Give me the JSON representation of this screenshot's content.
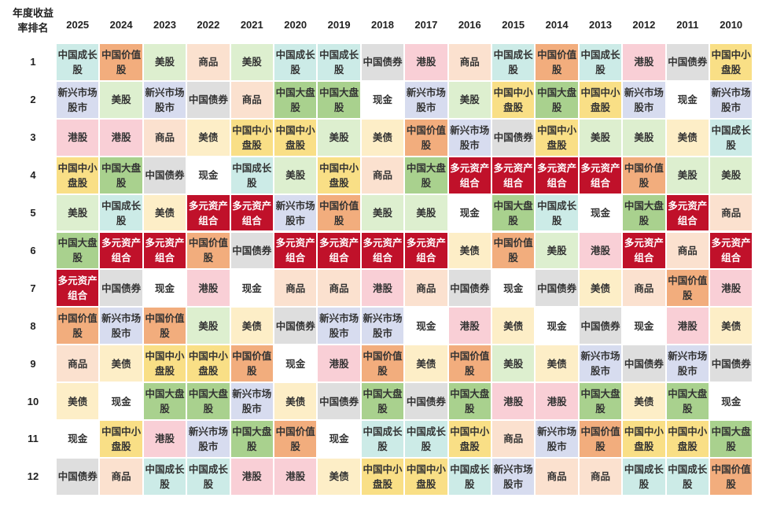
{
  "chart_data": {
    "type": "table",
    "corner_label": [
      "年度收益",
      "率排名"
    ],
    "years": [
      "2025",
      "2024",
      "2023",
      "2022",
      "2021",
      "2020",
      "2019",
      "2018",
      "2017",
      "2016",
      "2015",
      "2014",
      "2013",
      "2012",
      "2011",
      "2010"
    ],
    "ranks": [
      "1",
      "2",
      "3",
      "4",
      "5",
      "6",
      "7",
      "8",
      "9",
      "10",
      "11",
      "12"
    ],
    "asset_colors": {
      "中国成长股": "#ccebe7",
      "中国价值股": "#f2ad7d",
      "美股": "#ddefcf",
      "商品": "#fbe1cf",
      "中国债券": "#dedede",
      "港股": "#f9cfd6",
      "中国中小盘股": "#f9df86",
      "新兴市场股市": "#d7dcef",
      "中国大盘股": "#a9d18e",
      "现金": "#ffffff",
      "美债": "#fdeec7",
      "多元资产组合": "#c0112a"
    },
    "cells": [
      [
        "中国成长股",
        "中国价值股",
        "美股",
        "商品",
        "美股",
        "中国成长股",
        "中国成长股",
        "中国债券",
        "港股",
        "商品",
        "中国成长股",
        "中国价值股",
        "中国成长股",
        "港股",
        "中国债券",
        "中国中小盘股"
      ],
      [
        "新兴市场股市",
        "美股",
        "新兴市场股市",
        "中国债券",
        "商品",
        "中国大盘股",
        "中国大盘股",
        "现金",
        "新兴市场股市",
        "美股",
        "中国中小盘股",
        "中国大盘股",
        "中国中小盘股",
        "新兴市场股市",
        "现金",
        "新兴市场股市"
      ],
      [
        "港股",
        "港股",
        "商品",
        "美债",
        "中国中小盘股",
        "中国中小盘股",
        "美股",
        "美债",
        "中国价值股",
        "新兴市场股市",
        "中国债券",
        "中国中小盘股",
        "美股",
        "美股",
        "美债",
        "中国成长股"
      ],
      [
        "中国中小盘股",
        "中国大盘股",
        "中国债券",
        "现金",
        "中国成长股",
        "美股",
        "中国中小盘股",
        "商品",
        "中国大盘股",
        "多元资产组合",
        "多元资产组合",
        "多元资产组合",
        "多元资产组合",
        "中国价值股",
        "美股",
        "美股"
      ],
      [
        "美股",
        "中国成长股",
        "美债",
        "多元资产组合",
        "多元资产组合",
        "新兴市场股市",
        "中国价值股",
        "美股",
        "美股",
        "现金",
        "中国大盘股",
        "中国成长股",
        "现金",
        "中国大盘股",
        "多元资产组合",
        "商品"
      ],
      [
        "中国大盘股",
        "多元资产组合",
        "多元资产组合",
        "中国价值股",
        "中国债券",
        "多元资产组合",
        "多元资产组合",
        "多元资产组合",
        "多元资产组合",
        "美债",
        "中国价值股",
        "美股",
        "港股",
        "多元资产组合",
        "商品",
        "多元资产组合"
      ],
      [
        "多元资产组合",
        "中国债券",
        "现金",
        "港股",
        "现金",
        "商品",
        "商品",
        "港股",
        "商品",
        "中国债券",
        "现金",
        "中国债券",
        "美债",
        "商品",
        "中国价值股",
        "港股"
      ],
      [
        "中国价值股",
        "新兴市场股市",
        "中国价值股",
        "美股",
        "美债",
        "中国债券",
        "新兴市场股市",
        "新兴市场股市",
        "现金",
        "港股",
        "美债",
        "现金",
        "中国债券",
        "现金",
        "港股",
        "美债"
      ],
      [
        "商品",
        "美债",
        "中国中小盘股",
        "中国中小盘股",
        "中国价值股",
        "现金",
        "港股",
        "中国价值股",
        "美债",
        "中国价值股",
        "美股",
        "美债",
        "新兴市场股市",
        "中国债券",
        "新兴市场股市",
        "中国债券"
      ],
      [
        "美债",
        "现金",
        "中国大盘股",
        "中国大盘股",
        "新兴市场股市",
        "美债",
        "中国债券",
        "中国大盘股",
        "中国债券",
        "中国大盘股",
        "港股",
        "港股",
        "中国大盘股",
        "美债",
        "中国大盘股",
        "现金"
      ],
      [
        "现金",
        "中国中小盘股",
        "港股",
        "新兴市场股市",
        "中国大盘股",
        "中国价值股",
        "现金",
        "中国成长股",
        "中国成长股",
        "中国中小盘股",
        "商品",
        "新兴市场股市",
        "中国价值股",
        "中国中小盘股",
        "中国中小盘股",
        "中国大盘股"
      ],
      [
        "中国债券",
        "商品",
        "中国成长股",
        "中国成长股",
        "港股",
        "港股",
        "美债",
        "中国中小盘股",
        "中国中小盘股",
        "中国成长股",
        "新兴市场股市",
        "商品",
        "商品",
        "中国成长股",
        "中国成长股",
        "中国价值股"
      ]
    ]
  }
}
